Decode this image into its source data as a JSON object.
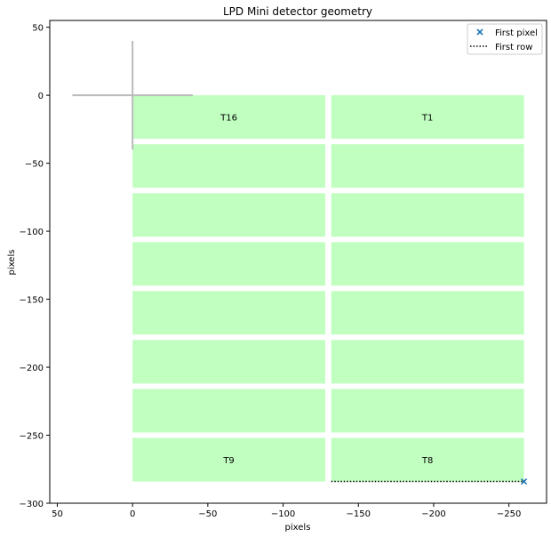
{
  "chart_data": {
    "type": "scatter",
    "title": "LPD Mini detector geometry",
    "xlabel": "pixels",
    "ylabel": "pixels",
    "xlim": [
      55,
      -275
    ],
    "ylim": [
      -300,
      55
    ],
    "x_ticks": [
      50,
      0,
      -50,
      -100,
      -150,
      -200,
      -250
    ],
    "y_ticks": [
      50,
      0,
      -50,
      -100,
      -150,
      -200,
      -250,
      -300
    ],
    "x_tick_labels": [
      "50",
      "0",
      "−50",
      "−100",
      "−150",
      "−200",
      "−250"
    ],
    "y_tick_labels": [
      "50",
      "0",
      "−50",
      "−100",
      "−150",
      "−200",
      "−250",
      "−300"
    ],
    "grid": false,
    "legend_position": "top-right",
    "tile_color": "#c0ffc0",
    "origin_cross_color": "#bbbbbb",
    "tiles": [
      {
        "x0": 0,
        "x1": -128,
        "y0": 0,
        "y1": -32,
        "label": "T16"
      },
      {
        "x0": -132,
        "x1": -260,
        "y0": 0,
        "y1": -32,
        "label": "T1"
      },
      {
        "x0": 0,
        "x1": -128,
        "y0": -36,
        "y1": -68,
        "label": ""
      },
      {
        "x0": -132,
        "x1": -260,
        "y0": -36,
        "y1": -68,
        "label": ""
      },
      {
        "x0": 0,
        "x1": -128,
        "y0": -72,
        "y1": -104,
        "label": ""
      },
      {
        "x0": -132,
        "x1": -260,
        "y0": -72,
        "y1": -104,
        "label": ""
      },
      {
        "x0": 0,
        "x1": -128,
        "y0": -108,
        "y1": -140,
        "label": ""
      },
      {
        "x0": -132,
        "x1": -260,
        "y0": -108,
        "y1": -140,
        "label": ""
      },
      {
        "x0": 0,
        "x1": -128,
        "y0": -144,
        "y1": -176,
        "label": ""
      },
      {
        "x0": -132,
        "x1": -260,
        "y0": -144,
        "y1": -176,
        "label": ""
      },
      {
        "x0": 0,
        "x1": -128,
        "y0": -180,
        "y1": -212,
        "label": ""
      },
      {
        "x0": -132,
        "x1": -260,
        "y0": -180,
        "y1": -212,
        "label": ""
      },
      {
        "x0": 0,
        "x1": -128,
        "y0": -216,
        "y1": -248,
        "label": ""
      },
      {
        "x0": -132,
        "x1": -260,
        "y0": -216,
        "y1": -248,
        "label": ""
      },
      {
        "x0": 0,
        "x1": -128,
        "y0": -252,
        "y1": -284,
        "label": "T9"
      },
      {
        "x0": -132,
        "x1": -260,
        "y0": -252,
        "y1": -284,
        "label": "T8"
      }
    ],
    "origin_cross": {
      "h": [
        40,
        -40
      ],
      "v": [
        40,
        -40
      ]
    },
    "series": [
      {
        "name": "First pixel",
        "marker": "x",
        "color": "#1f77b4",
        "points": [
          [
            -260,
            -284
          ]
        ]
      },
      {
        "name": "First row",
        "style": "dotted",
        "color": "#000000",
        "x": [
          -132,
          -260
        ],
        "y": [
          -284,
          -284
        ]
      }
    ]
  }
}
